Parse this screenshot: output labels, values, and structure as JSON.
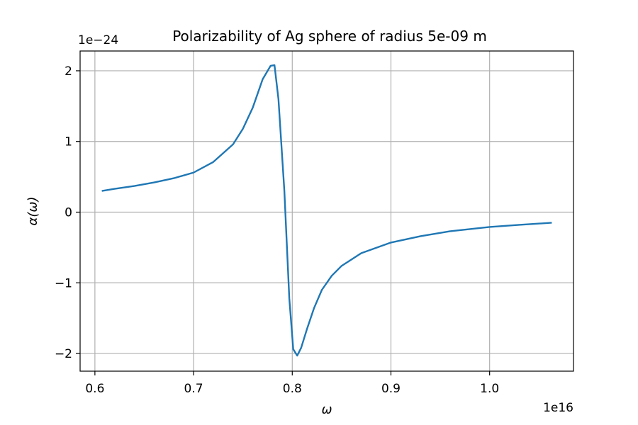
{
  "chart_data": {
    "type": "line",
    "title": "Polarizability of Ag sphere of radius 5e-09 m",
    "xlabel": "ω",
    "ylabel": "α(ω)",
    "x_offset_text": "1e16",
    "y_offset_text": "1e−24",
    "xlim": [
      0.585,
      1.085
    ],
    "ylim": [
      -2.25,
      2.28
    ],
    "xticks": [
      0.6,
      0.7,
      0.8,
      0.9,
      1.0
    ],
    "xtick_labels": [
      "0.6",
      "0.7",
      "0.8",
      "0.9",
      "1.0"
    ],
    "yticks": [
      -2,
      -1,
      0,
      1,
      2
    ],
    "ytick_labels": [
      "−2",
      "−1",
      "0",
      "1",
      "2"
    ],
    "grid": true,
    "series": [
      {
        "color": "#1f77b4",
        "x": [
          0.607,
          0.62,
          0.64,
          0.66,
          0.68,
          0.7,
          0.72,
          0.74,
          0.75,
          0.76,
          0.77,
          0.778,
          0.782,
          0.786,
          0.792,
          0.797,
          0.801,
          0.805,
          0.809,
          0.815,
          0.822,
          0.83,
          0.84,
          0.85,
          0.87,
          0.9,
          0.93,
          0.96,
          1.0,
          1.03,
          1.063
        ],
        "y": [
          0.3,
          0.33,
          0.37,
          0.42,
          0.48,
          0.56,
          0.71,
          0.96,
          1.18,
          1.48,
          1.88,
          2.07,
          2.08,
          1.6,
          0.3,
          -1.22,
          -1.94,
          -2.03,
          -1.92,
          -1.65,
          -1.36,
          -1.1,
          -0.9,
          -0.76,
          -0.58,
          -0.43,
          -0.34,
          -0.27,
          -0.21,
          -0.18,
          -0.15
        ]
      }
    ]
  }
}
